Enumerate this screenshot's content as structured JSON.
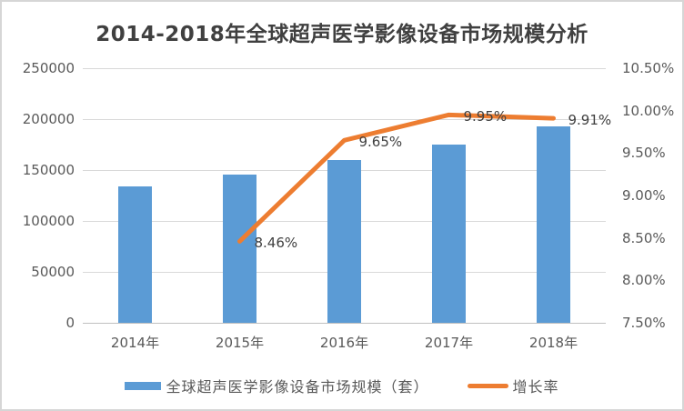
{
  "title": "2014-2018年全球超声医学影像设备市场规模分析",
  "chart_data": {
    "type": "bar+line combo",
    "categories": [
      "2014年",
      "2015年",
      "2016年",
      "2017年",
      "2018年"
    ],
    "series": [
      {
        "name": "全球超声医学影像设备市场规模（套）",
        "type": "bar",
        "axis": "left",
        "color": "#5B9BD5",
        "values": [
          134000,
          145400,
          159400,
          175200,
          192600
        ]
      },
      {
        "name": "增长率",
        "type": "line",
        "axis": "right",
        "color": "#ED7D31",
        "values": [
          null,
          8.46,
          9.65,
          9.95,
          9.91
        ],
        "point_labels": [
          null,
          "8.46%",
          "9.65%",
          "9.95%",
          "9.91%"
        ]
      }
    ],
    "left_axis": {
      "min": 0,
      "max": 250000,
      "step": 50000,
      "ticks": [
        "250000",
        "200000",
        "150000",
        "100000",
        "50000",
        "0"
      ]
    },
    "right_axis": {
      "min": 7.5,
      "max": 10.5,
      "step": 0.5,
      "ticks": [
        "10.50%",
        "10.00%",
        "9.50%",
        "9.00%",
        "8.50%",
        "8.00%",
        "7.50%"
      ]
    },
    "grid": true,
    "legend_position": "bottom",
    "colors": {
      "bar": "#5B9BD5",
      "line": "#ED7D31",
      "gridline": "#D9D9D9",
      "axis_line": "#C0C0C0",
      "axis_text": "#595959",
      "data_label_text": "#404040",
      "title_text": "#404040",
      "background": "#FFFFFF"
    }
  }
}
